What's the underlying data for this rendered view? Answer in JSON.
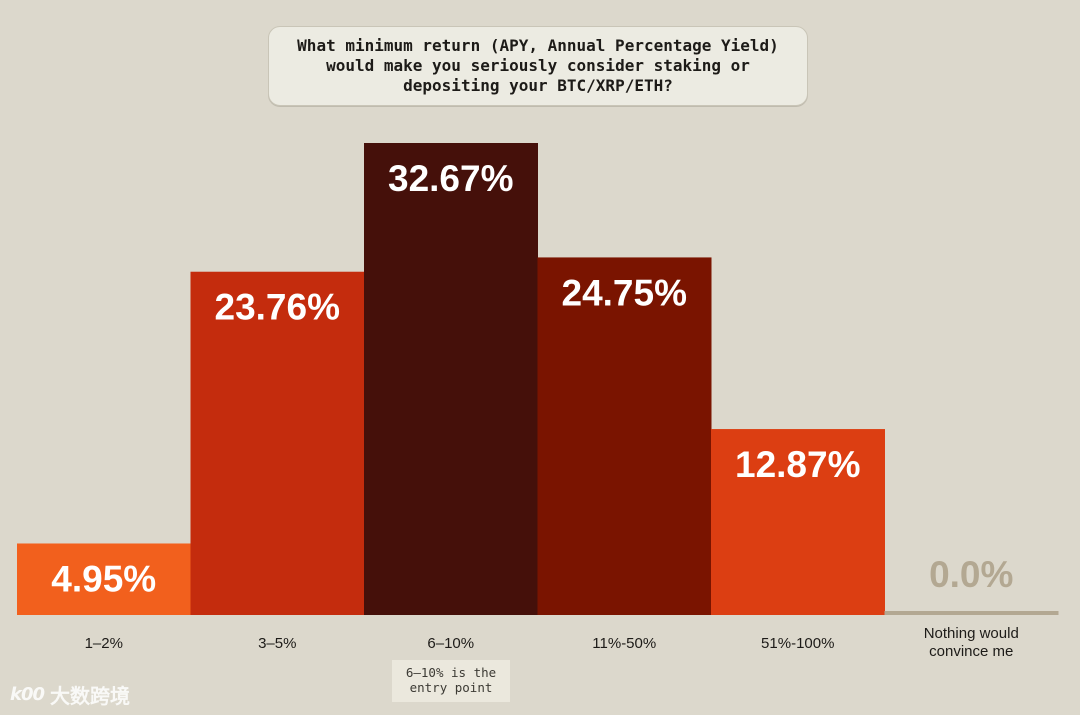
{
  "chart_data": {
    "type": "bar",
    "title": "What minimum return (APY, Annual Percentage Yield) would make you seriously consider staking or depositing your BTC/XRP/ETH?",
    "categories": [
      "1–2%",
      "3–5%",
      "6–10%",
      "11%-50%",
      "51%-100%",
      "Nothing would convince me"
    ],
    "values": [
      4.95,
      23.76,
      32.67,
      24.75,
      12.87,
      0.0
    ],
    "value_labels": [
      "4.95%",
      "23.76%",
      "32.67%",
      "24.75%",
      "12.87%",
      "0.0%"
    ],
    "colors": [
      "#f2601d",
      "#c42c0d",
      "#45100a",
      "#7a1400",
      "#dc3e12",
      "#b3a892"
    ],
    "ylim": [
      0,
      32.67
    ],
    "grid": false,
    "annotation": "6–10% is the\nentry point"
  },
  "watermark": {
    "logo": "k00",
    "text": "大数跨境"
  }
}
